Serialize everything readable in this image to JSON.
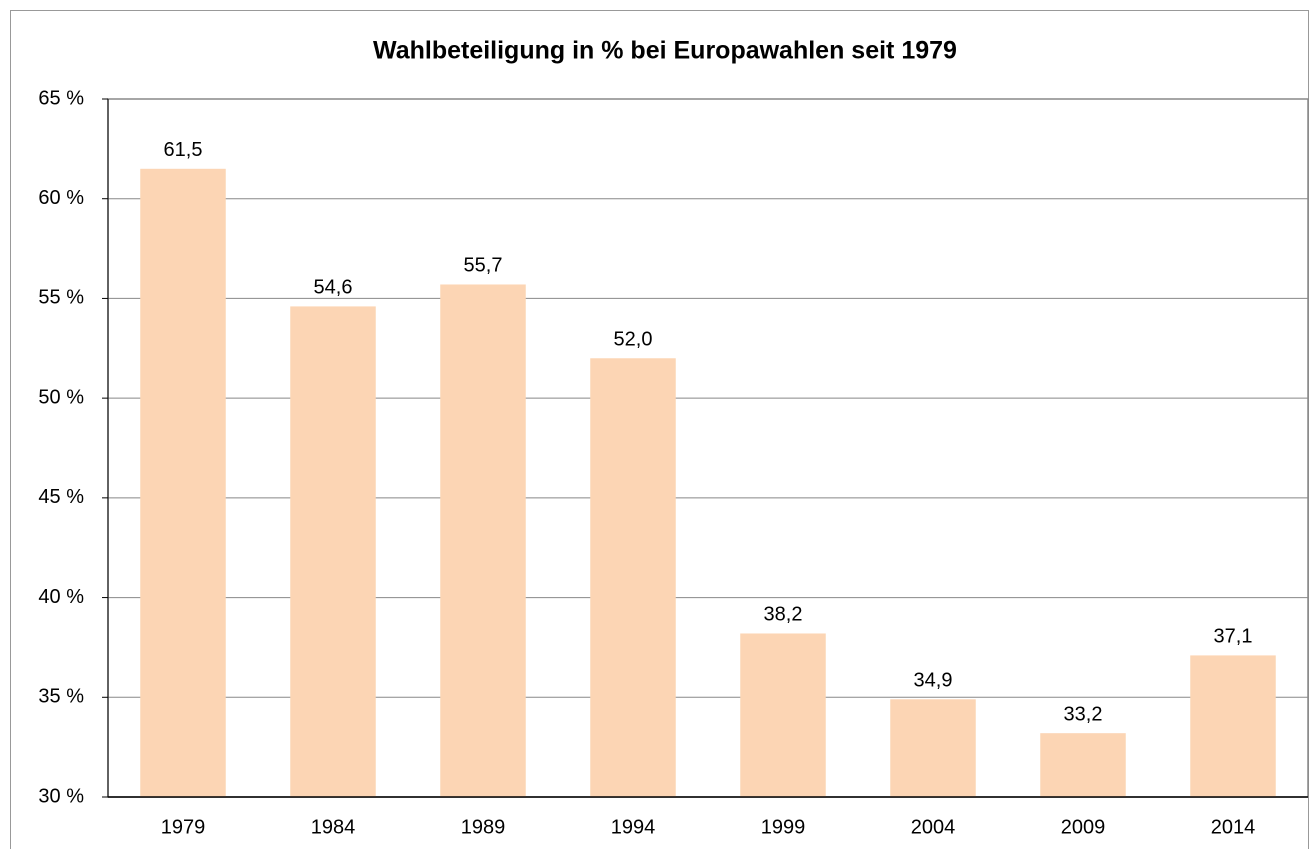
{
  "chart_data": {
    "type": "bar",
    "title": "Wahlbeteiligung in % bei Europawahlen seit 1979",
    "categories": [
      "1979",
      "1984",
      "1989",
      "1994",
      "1999",
      "2004",
      "2009",
      "2014"
    ],
    "values": [
      61.5,
      54.6,
      55.7,
      52.0,
      38.2,
      34.9,
      33.2,
      37.1
    ],
    "value_labels": [
      "61,5",
      "54,6",
      "55,7",
      "52,0",
      "38,2",
      "34,9",
      "33,2",
      "37,1"
    ],
    "color": "#fcd5b4",
    "ylim": [
      30,
      65
    ],
    "yticks": [
      {
        "value": 30,
        "label": "30 %"
      },
      {
        "value": 35,
        "label": "35 %"
      },
      {
        "value": 40,
        "label": "40 %"
      },
      {
        "value": 45,
        "label": "45 %"
      },
      {
        "value": 50,
        "label": "50 %"
      },
      {
        "value": 55,
        "label": "55 %"
      },
      {
        "value": 60,
        "label": "60 %"
      },
      {
        "value": 65,
        "label": "65 %"
      }
    ],
    "grid": true
  }
}
